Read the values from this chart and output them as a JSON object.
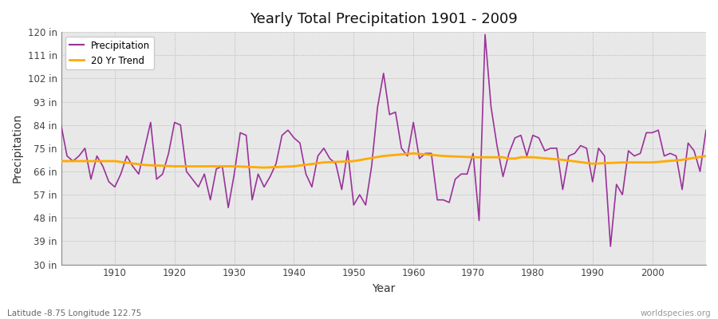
{
  "title": "Yearly Total Precipitation 1901 - 2009",
  "xlabel": "Year",
  "ylabel": "Precipitation",
  "subtitle_left": "Latitude -8.75 Longitude 122.75",
  "subtitle_right": "worldspecies.org",
  "fig_bg_color": "#ffffff",
  "plot_bg_color": "#e8e8e8",
  "precip_color": "#993399",
  "trend_color": "#ffaa00",
  "ylim": [
    30,
    120
  ],
  "yticks": [
    30,
    39,
    48,
    57,
    66,
    75,
    84,
    93,
    102,
    111,
    120
  ],
  "ytick_labels": [
    "30 in",
    "39 in",
    "48 in",
    "57 in",
    "66 in",
    "75 in",
    "84 in",
    "93 in",
    "102 in",
    "111 in",
    "120 in"
  ],
  "years": [
    1901,
    1902,
    1903,
    1904,
    1905,
    1906,
    1907,
    1908,
    1909,
    1910,
    1911,
    1912,
    1913,
    1914,
    1915,
    1916,
    1917,
    1918,
    1919,
    1920,
    1921,
    1922,
    1923,
    1924,
    1925,
    1926,
    1927,
    1928,
    1929,
    1930,
    1931,
    1932,
    1933,
    1934,
    1935,
    1936,
    1937,
    1938,
    1939,
    1940,
    1941,
    1942,
    1943,
    1944,
    1945,
    1946,
    1947,
    1948,
    1949,
    1950,
    1951,
    1952,
    1953,
    1954,
    1955,
    1956,
    1957,
    1958,
    1959,
    1960,
    1961,
    1962,
    1963,
    1964,
    1965,
    1966,
    1967,
    1968,
    1969,
    1970,
    1971,
    1972,
    1973,
    1974,
    1975,
    1976,
    1977,
    1978,
    1979,
    1980,
    1981,
    1982,
    1983,
    1984,
    1985,
    1986,
    1987,
    1988,
    1989,
    1990,
    1991,
    1992,
    1993,
    1994,
    1995,
    1996,
    1997,
    1998,
    1999,
    2000,
    2001,
    2002,
    2003,
    2004,
    2005,
    2006,
    2007,
    2008,
    2009
  ],
  "precip": [
    84,
    72,
    70,
    72,
    75,
    63,
    72,
    68,
    62,
    60,
    65,
    72,
    68,
    65,
    75,
    85,
    63,
    65,
    73,
    85,
    84,
    66,
    63,
    60,
    65,
    55,
    67,
    68,
    52,
    65,
    81,
    80,
    55,
    65,
    60,
    64,
    69,
    80,
    82,
    79,
    77,
    65,
    60,
    72,
    75,
    71,
    69,
    59,
    74,
    53,
    57,
    53,
    68,
    91,
    104,
    88,
    89,
    75,
    72,
    85,
    71,
    73,
    73,
    55,
    55,
    54,
    63,
    65,
    65,
    73,
    47,
    119,
    91,
    76,
    64,
    73,
    79,
    80,
    72,
    80,
    79,
    74,
    75,
    75,
    59,
    72,
    73,
    76,
    75,
    62,
    75,
    72,
    37,
    61,
    57,
    74,
    72,
    73,
    81,
    81,
    82,
    72,
    73,
    72,
    59,
    77,
    74,
    66,
    82
  ],
  "trend_years": [
    1901,
    1905,
    1910,
    1915,
    1920,
    1925,
    1930,
    1935,
    1940,
    1945,
    1950,
    1955,
    1960,
    1965,
    1970,
    1975,
    1976,
    1977,
    1978,
    1979,
    1980,
    1985,
    1990,
    1995,
    2000,
    2005,
    2009
  ],
  "trend_vals": [
    70,
    70,
    70,
    68.5,
    68,
    68,
    68,
    67.5,
    68,
    69.5,
    70,
    72,
    73,
    72,
    71.5,
    71.5,
    71,
    71,
    71.5,
    71.5,
    71.5,
    70.5,
    69,
    69.5,
    69.5,
    70.5,
    72
  ],
  "xticks": [
    1910,
    1920,
    1930,
    1940,
    1950,
    1960,
    1970,
    1980,
    1990,
    2000
  ],
  "xlim": [
    1901,
    2009
  ]
}
